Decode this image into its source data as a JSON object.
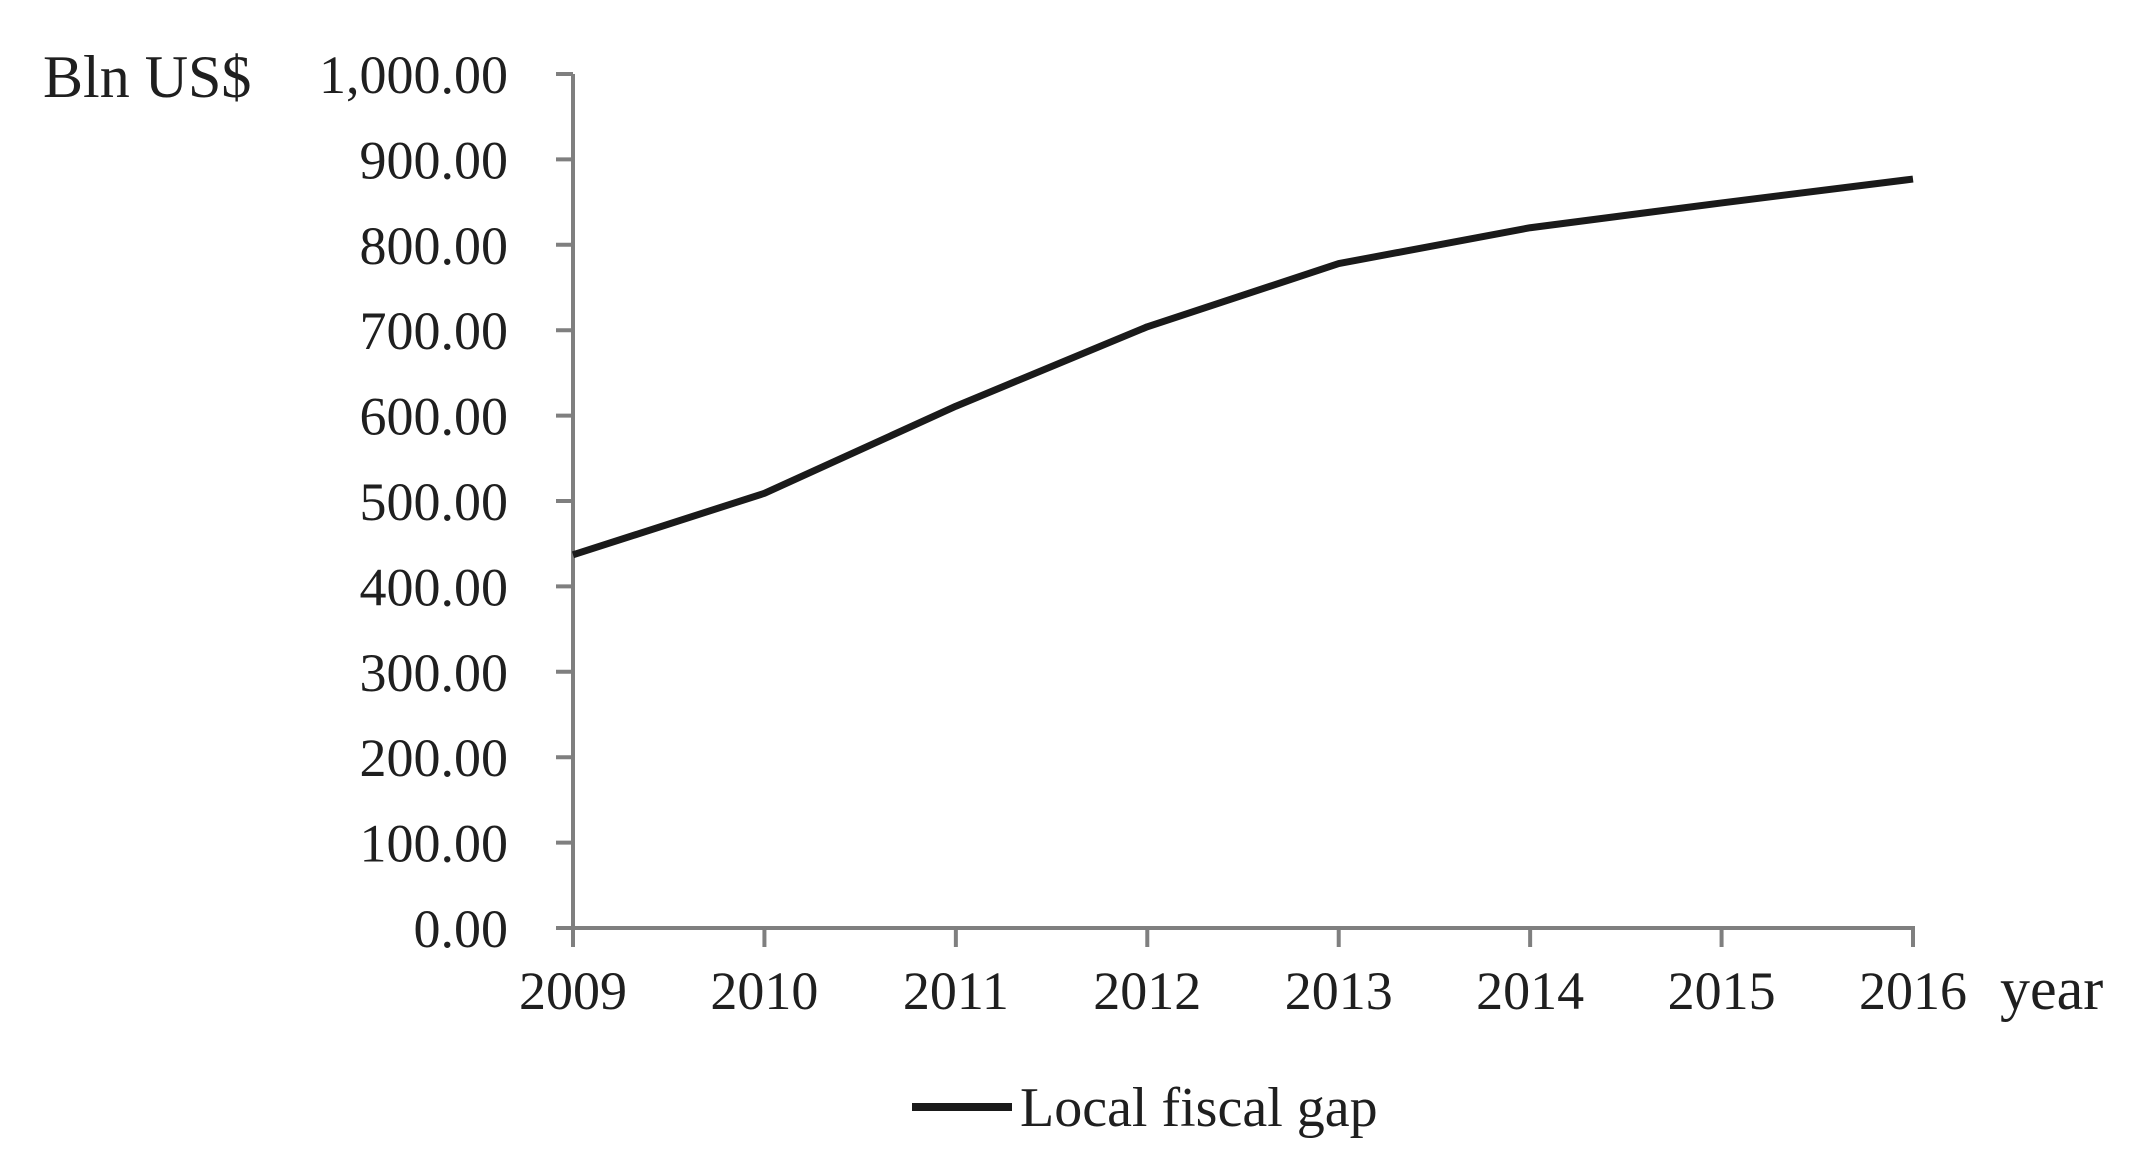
{
  "chart_data": {
    "type": "line",
    "title": "",
    "ylabel": "Bln US$",
    "xlabel": "year",
    "x": [
      "2009",
      "2010",
      "2011",
      "2012",
      "2013",
      "2014",
      "2015",
      "2016"
    ],
    "series": [
      {
        "name": "Local fiscal gap",
        "values": [
          437,
          509,
          611,
          704,
          778,
          820,
          849,
          877
        ]
      }
    ],
    "ylim": [
      0,
      1000
    ],
    "y_tick_step": 100,
    "y_tick_labels": [
      "0.00",
      "100.00",
      "200.00",
      "300.00",
      "400.00",
      "500.00",
      "600.00",
      "700.00",
      "800.00",
      "900.00",
      "1,000.00"
    ],
    "grid": "off",
    "legend_position": "bottom-center",
    "colors": {
      "line": "#1a1a1a",
      "axis": "#7f7f7f",
      "text": "#1f1f1f"
    }
  }
}
